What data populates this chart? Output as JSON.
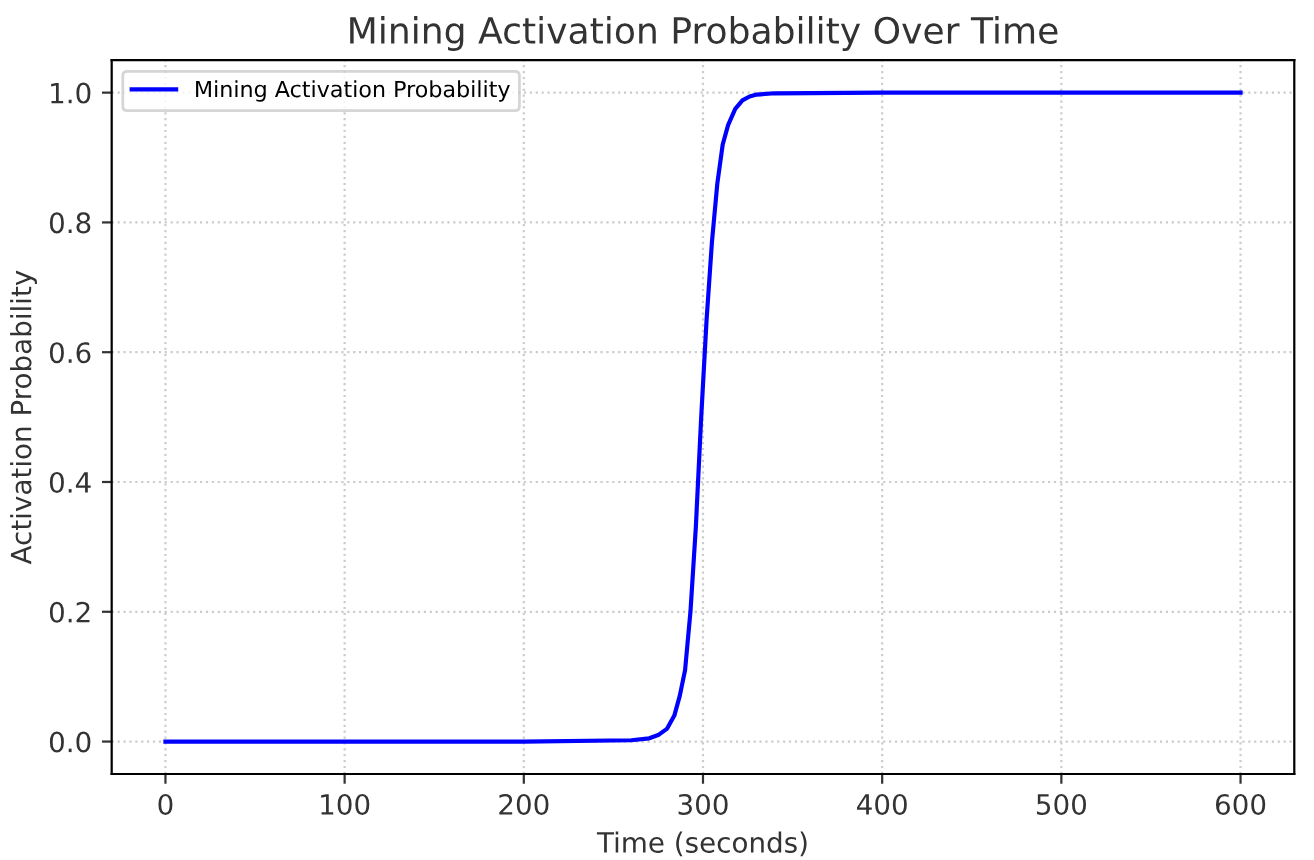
{
  "chart_data": {
    "type": "line",
    "title": "Mining Activation Probability Over Time",
    "xlabel": "Time (seconds)",
    "ylabel": "Activation Probability",
    "xlim": [
      -30,
      630
    ],
    "ylim": [
      -0.05,
      1.05
    ],
    "xticks": [
      0,
      100,
      200,
      300,
      400,
      500,
      600
    ],
    "yticks": [
      {
        "value": 0,
        "label": "0.0"
      },
      {
        "value": 0.2,
        "label": "0.2"
      },
      {
        "value": 0.4,
        "label": "0.4"
      },
      {
        "value": 0.6,
        "label": "0.6"
      },
      {
        "value": 0.8,
        "label": "0.8"
      },
      {
        "value": 1,
        "label": "1.0"
      }
    ],
    "grid": true,
    "legend": "top left",
    "line_style": "solid",
    "marker": "none",
    "series": [
      {
        "name": "Mining Activation Probability",
        "color": "#0000ff",
        "x": [
          0,
          100,
          200,
          260,
          270,
          275,
          280,
          284,
          287,
          290,
          293,
          296,
          299,
          302,
          305,
          308,
          311,
          314,
          318,
          322,
          326,
          330,
          340,
          400,
          500,
          600
        ],
        "values": [
          0,
          0,
          0,
          0.002,
          0.005,
          0.01,
          0.02,
          0.04,
          0.07,
          0.11,
          0.2,
          0.33,
          0.5,
          0.65,
          0.77,
          0.86,
          0.92,
          0.95,
          0.975,
          0.988,
          0.994,
          0.997,
          0.999,
          1,
          1,
          1
        ]
      }
    ]
  }
}
